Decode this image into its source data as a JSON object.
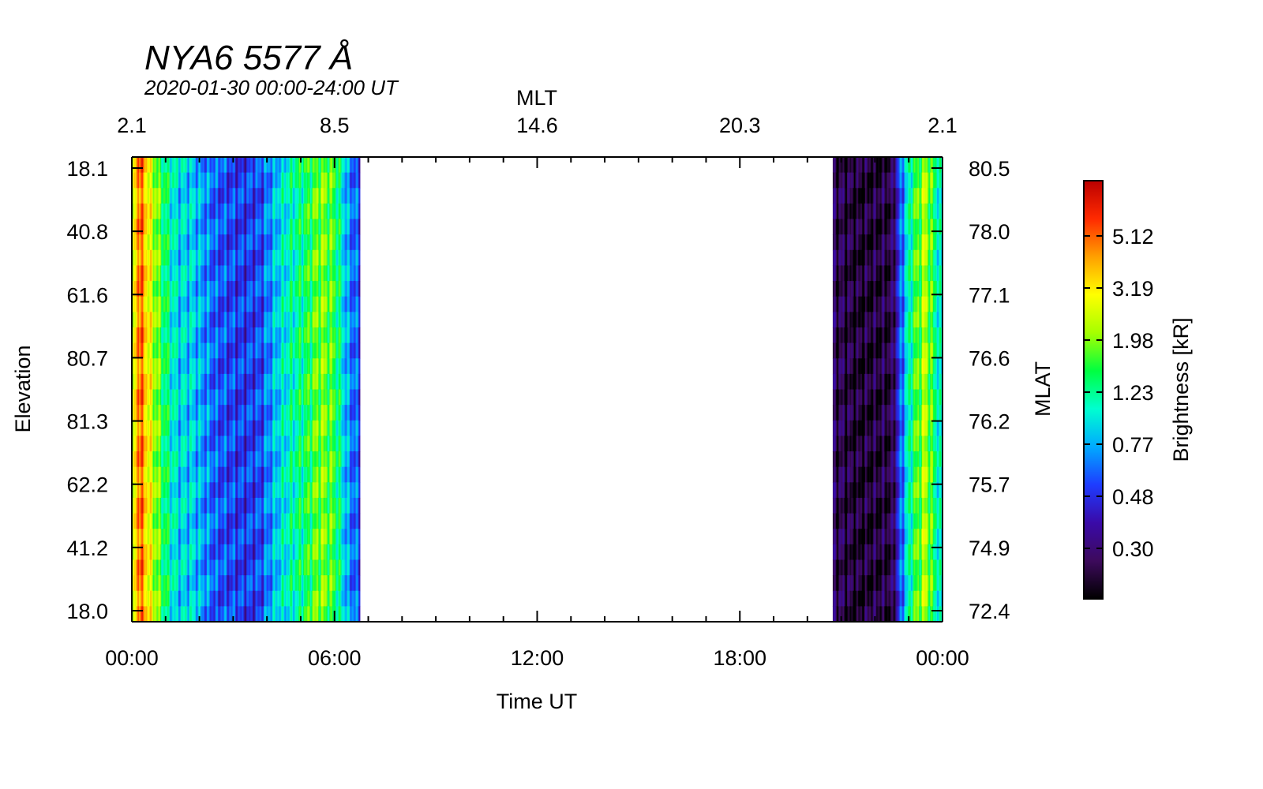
{
  "chart_data": {
    "type": "heatmap",
    "title": "NYA6 5577 Å",
    "subtitle": "2020-01-30 00:00-24:00 UT",
    "xlabel": "Time UT",
    "ylabel_left": "Elevation",
    "ylabel_right": "MLAT",
    "xlabel_top": "MLT",
    "colorbar_label": "Brightness [kR]",
    "x_ticks": [
      "00:00",
      "06:00",
      "12:00",
      "18:00",
      "00:00"
    ],
    "x_tick_hours": [
      0,
      6,
      12,
      18,
      24
    ],
    "mlt_ticks": [
      "2.1",
      "8.5",
      "14.6",
      "20.3",
      "2.1"
    ],
    "elevation_ticks": [
      "18.1",
      "40.8",
      "61.6",
      "80.7",
      "81.3",
      "62.2",
      "41.2",
      "18.0"
    ],
    "mlat_ticks": [
      "80.5",
      "78.0",
      "77.1",
      "76.6",
      "76.2",
      "75.7",
      "74.9",
      "72.4"
    ],
    "colorbar_ticks": [
      "5.12",
      "3.19",
      "1.98",
      "1.23",
      "0.77",
      "0.48",
      "0.30"
    ],
    "xlim": [
      0,
      24
    ],
    "data_intervals_hours": [
      [
        0,
        6.75
      ],
      [
        20.75,
        24
      ]
    ],
    "colormap": [
      "#000000",
      "#3d0a5c",
      "#3a0aa8",
      "#1e3cff",
      "#00aaff",
      "#00ffd0",
      "#00ff40",
      "#a6ff00",
      "#ffff00",
      "#ffa000",
      "#ff2a00",
      "#bb0000"
    ],
    "brightness_profile": [
      {
        "hour": 0.0,
        "kR": 1.4
      },
      {
        "hour": 0.2,
        "kR": 5.0
      },
      {
        "hour": 0.5,
        "kR": 2.6
      },
      {
        "hour": 0.9,
        "kR": 1.3
      },
      {
        "hour": 1.3,
        "kR": 0.8
      },
      {
        "hour": 1.8,
        "kR": 0.75
      },
      {
        "hour": 2.5,
        "kR": 0.48
      },
      {
        "hour": 3.3,
        "kR": 0.42
      },
      {
        "hour": 3.8,
        "kR": 0.45
      },
      {
        "hour": 4.4,
        "kR": 0.8
      },
      {
        "hour": 5.0,
        "kR": 1.1
      },
      {
        "hour": 5.6,
        "kR": 1.7
      },
      {
        "hour": 6.0,
        "kR": 1.4
      },
      {
        "hour": 6.4,
        "kR": 0.6
      },
      {
        "hour": 6.75,
        "kR": 0.45
      },
      {
        "hour": 20.75,
        "kR": 0.22
      },
      {
        "hour": 21.5,
        "kR": 0.18
      },
      {
        "hour": 22.5,
        "kR": 0.2
      },
      {
        "hour": 22.8,
        "kR": 0.55
      },
      {
        "hour": 23.1,
        "kR": 1.2
      },
      {
        "hour": 23.5,
        "kR": 2.0
      },
      {
        "hour": 23.8,
        "kR": 1.1
      },
      {
        "hour": 24.0,
        "kR": 0.7
      }
    ]
  }
}
